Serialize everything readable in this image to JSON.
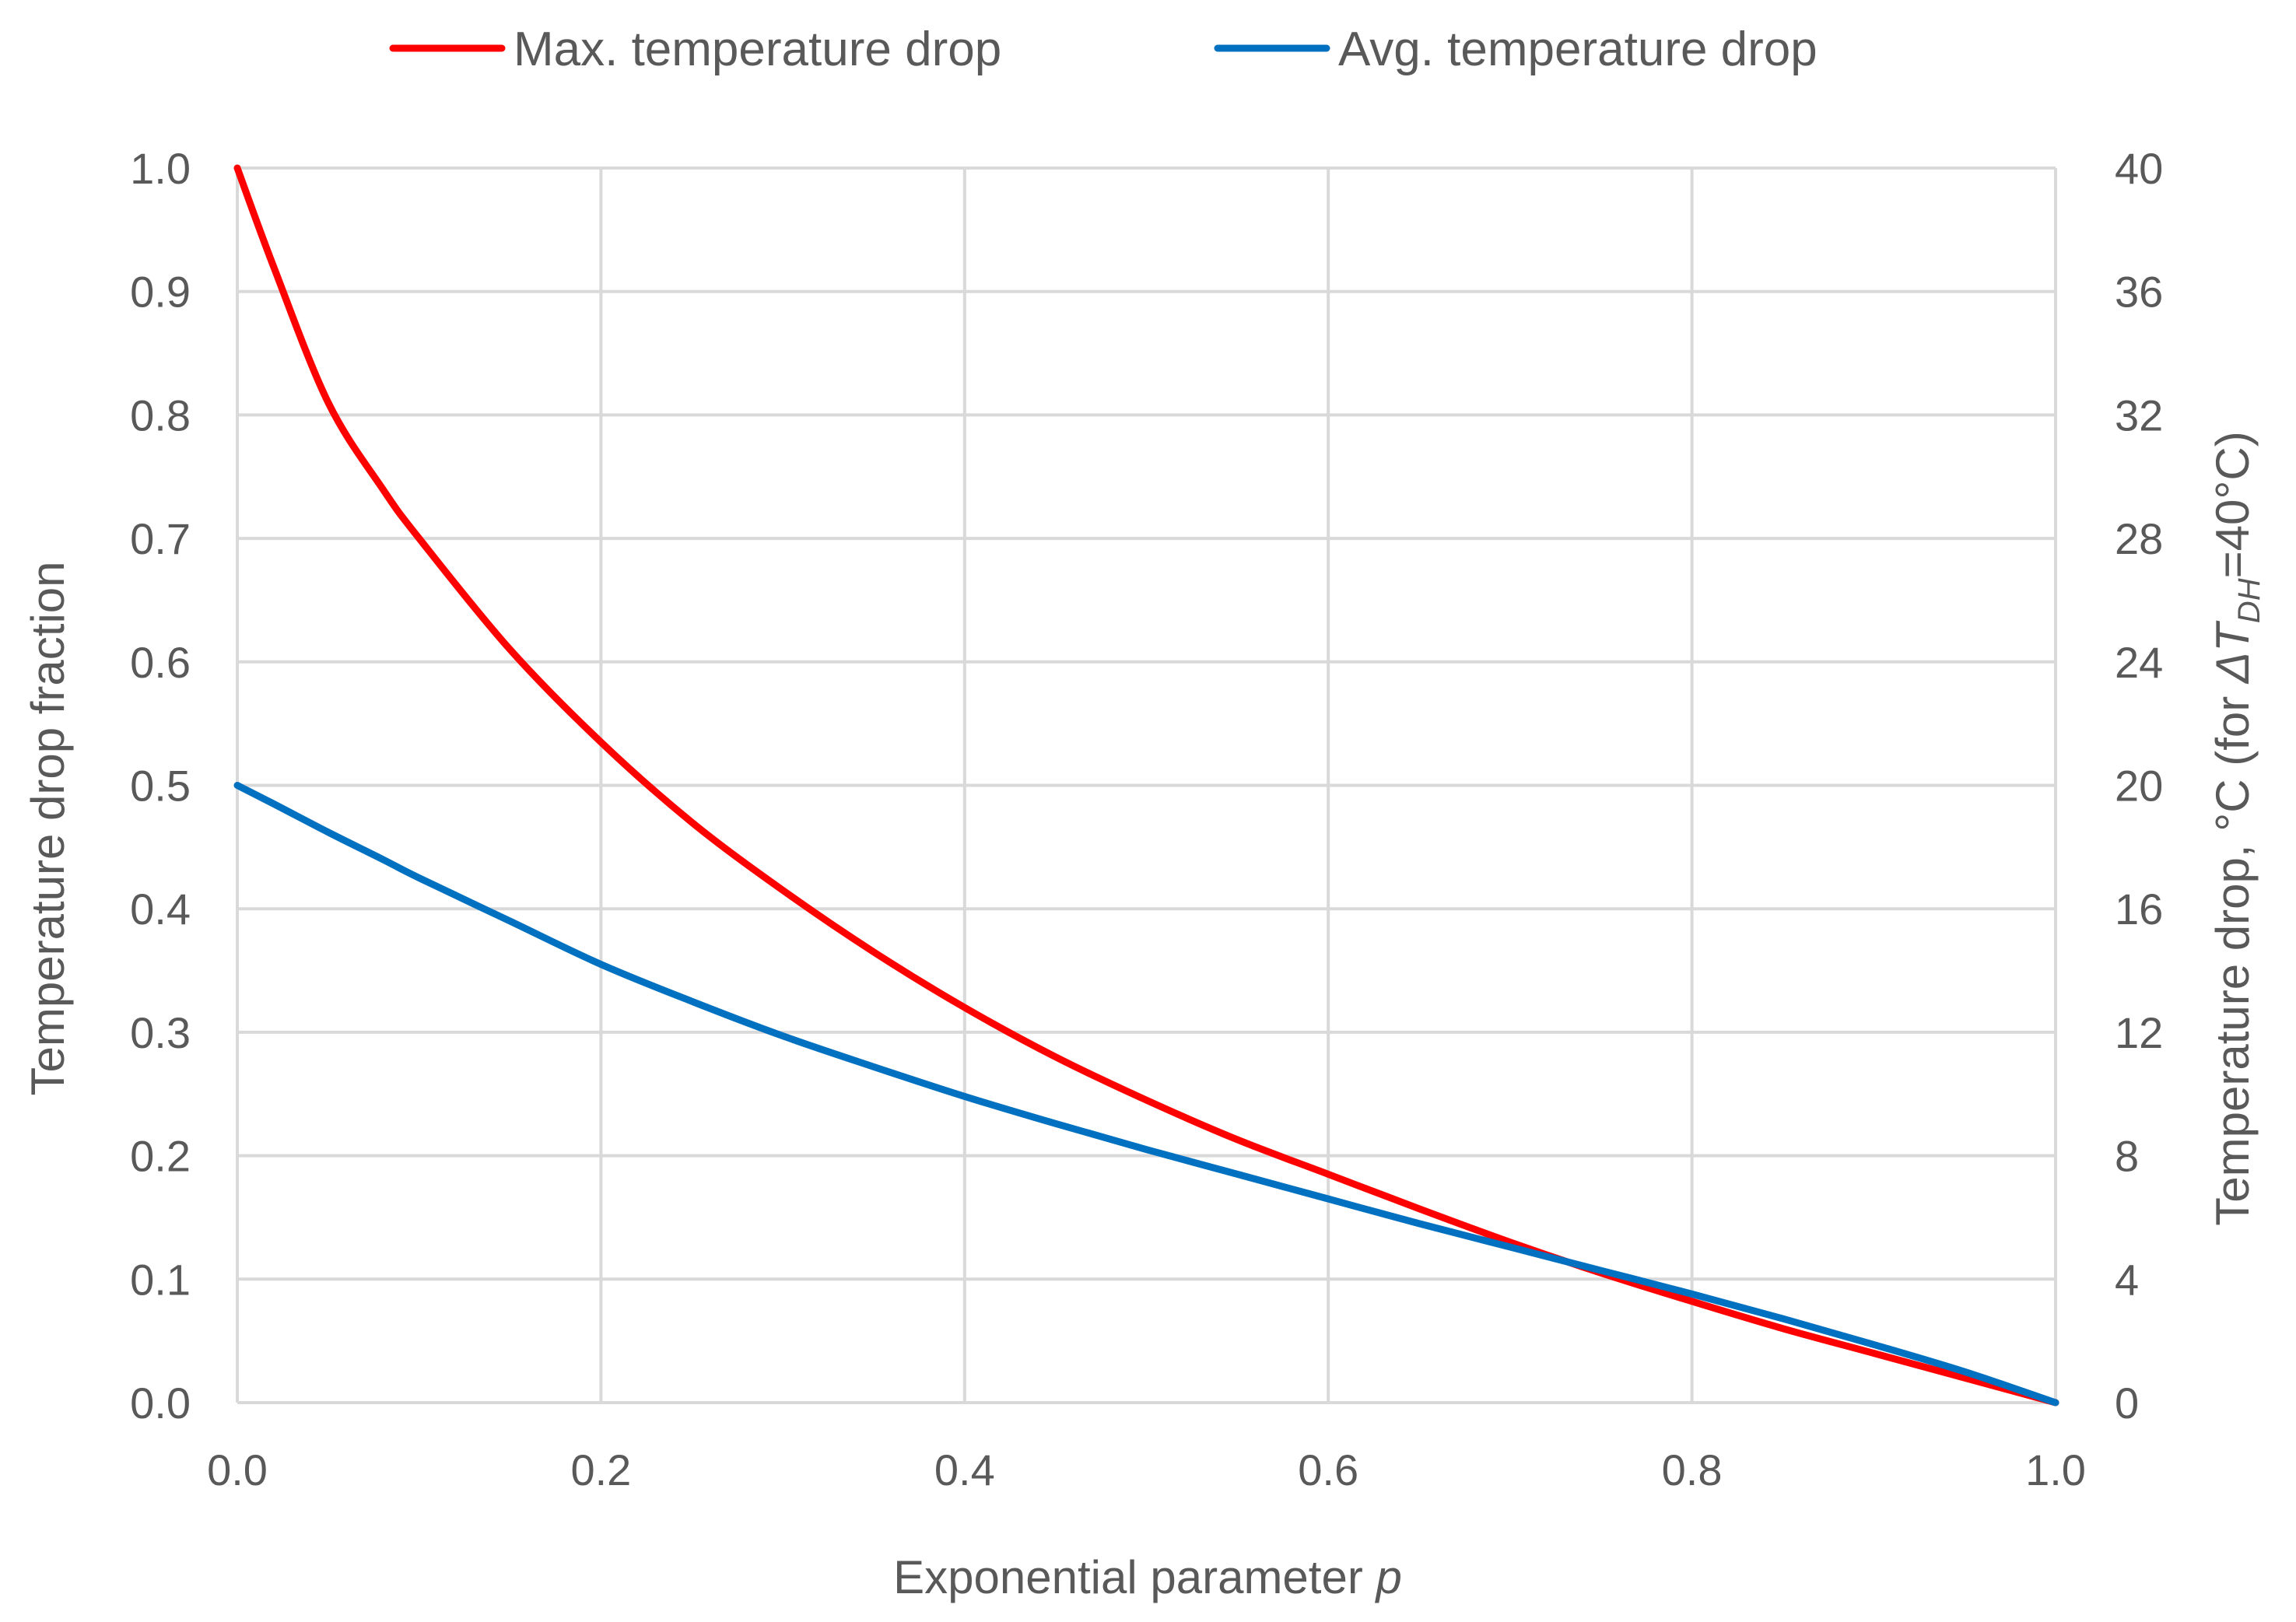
{
  "chart_data": {
    "type": "line",
    "xlabel": "Exponential parameter",
    "xlabel_italic": "p",
    "ylabel": "Temperature drop fraction",
    "y2label_prefix": "Temperature drop, °C (for ",
    "y2label_delta": "ΔT",
    "y2label_sub": "DH",
    "y2label_suffix": "=40°C)",
    "xlim": [
      0,
      1
    ],
    "ylim": [
      0,
      1
    ],
    "y2lim": [
      0,
      40
    ],
    "x_ticks": [
      "0.0",
      "0.2",
      "0.4",
      "0.6",
      "0.8",
      "1.0"
    ],
    "y_ticks": [
      "0.0",
      "0.1",
      "0.2",
      "0.3",
      "0.4",
      "0.5",
      "0.6",
      "0.7",
      "0.8",
      "0.9",
      "1.0"
    ],
    "y2_ticks": [
      "0",
      "4",
      "8",
      "12",
      "16",
      "20",
      "24",
      "28",
      "32",
      "36",
      "40"
    ],
    "grid": true,
    "legend_position": "top",
    "x": [
      0.0,
      0.02,
      0.05,
      0.08,
      0.1,
      0.15,
      0.2,
      0.25,
      0.3,
      0.35,
      0.4,
      0.45,
      0.5,
      0.55,
      0.6,
      0.65,
      0.7,
      0.75,
      0.8,
      0.85,
      0.9,
      0.95,
      1.0
    ],
    "series": [
      {
        "name": "Max. temperature drop",
        "color": "#ff0000",
        "values": [
          1.0,
          0.92,
          0.81,
          0.74,
          0.7,
          0.61,
          0.535,
          0.47,
          0.415,
          0.365,
          0.32,
          0.28,
          0.245,
          0.213,
          0.185,
          0.157,
          0.13,
          0.105,
          0.082,
          0.06,
          0.04,
          0.02,
          0.0
        ]
      },
      {
        "name": "Avg. temperature drop",
        "color": "#0070c0",
        "values": [
          0.5,
          0.485,
          0.462,
          0.44,
          0.425,
          0.39,
          0.355,
          0.325,
          0.297,
          0.272,
          0.248,
          0.226,
          0.205,
          0.185,
          0.165,
          0.145,
          0.126,
          0.107,
          0.088,
          0.068,
          0.047,
          0.025,
          0.0
        ]
      }
    ]
  }
}
